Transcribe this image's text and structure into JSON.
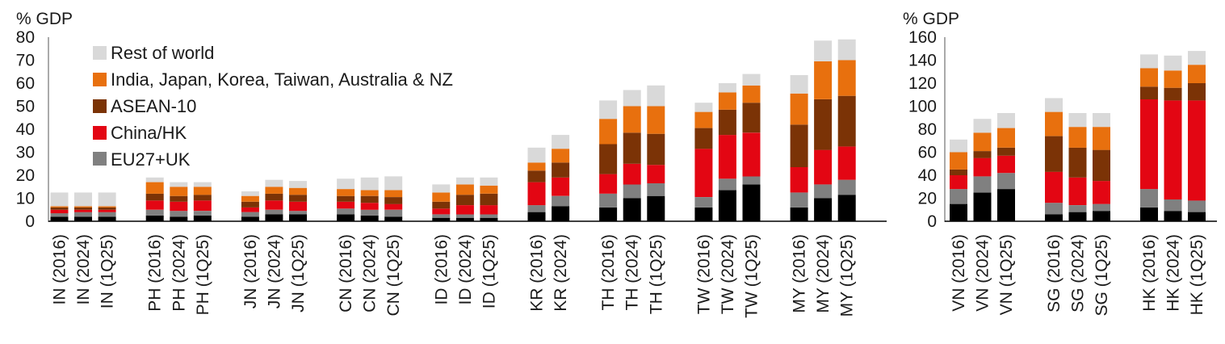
{
  "chart_data": [
    {
      "type": "bar",
      "stacked": true,
      "ylabel": "% GDP",
      "ylim": [
        0,
        80
      ],
      "yticks": [
        0,
        10,
        20,
        30,
        40,
        50,
        60,
        70,
        80
      ],
      "categories": [
        "IN (2016)",
        "IN (2024)",
        "IN (1Q25)",
        "",
        "PH (2016)",
        "PH (2024)",
        "PH (1Q25)",
        "",
        "JN (2016)",
        "JN (2024)",
        "JN (1Q25)",
        "",
        "CN (2016)",
        "CN (2024)",
        "CN (1Q25)",
        "",
        "ID (2016)",
        "ID (2024)",
        "ID (1Q25)",
        "",
        "KR (2016)",
        "KR (2024)",
        "",
        "TH (2016)",
        "TH (2024)",
        "TH (1Q25)",
        "",
        "TW (2016)",
        "TW (2024)",
        "TW (1Q25)",
        "",
        "MY (2016)",
        "MY (2024)",
        "MY (1Q25)"
      ],
      "series": [
        {
          "name": "",
          "color": "#000000",
          "values": [
            2,
            2,
            2,
            null,
            2.5,
            2,
            2.5,
            null,
            2,
            3,
            3,
            null,
            3,
            2.5,
            2,
            null,
            1.5,
            1.5,
            1.5,
            null,
            4,
            6.5,
            null,
            6,
            10,
            11,
            null,
            6,
            13.5,
            16,
            null,
            6,
            10,
            11.5
          ]
        },
        {
          "name": "EU27+UK",
          "color": "#808080",
          "values": [
            1.5,
            2,
            2,
            null,
            2.5,
            2.5,
            2,
            null,
            2,
            2,
            1.5,
            null,
            2.5,
            2.5,
            3,
            null,
            1.5,
            1.5,
            1.5,
            null,
            3,
            4.5,
            null,
            6,
            6,
            5.5,
            null,
            4.5,
            5,
            3.5,
            null,
            6.5,
            6,
            6.5
          ]
        },
        {
          "name": "China/HK",
          "color": "#e30613",
          "values": [
            1.5,
            1,
            1,
            null,
            4,
            4,
            4.5,
            null,
            2,
            4,
            4,
            null,
            3,
            3,
            2.5,
            null,
            2.5,
            4,
            4,
            null,
            10,
            8,
            null,
            8.5,
            9,
            8,
            null,
            21,
            19,
            19,
            null,
            11,
            15,
            14.5
          ]
        },
        {
          "name": "ASEAN-10",
          "color": "#7b3306",
          "values": [
            1,
            1,
            1,
            null,
            3,
            2.5,
            2.5,
            null,
            2.5,
            3,
            3,
            null,
            2.5,
            3,
            3,
            null,
            3,
            4.5,
            5,
            null,
            5,
            6.5,
            null,
            13,
            13.5,
            13.5,
            null,
            9,
            11,
            13,
            null,
            18.5,
            22,
            22
          ]
        },
        {
          "name": "India, Japan, Korea, Taiwan, Australia & NZ",
          "color": "#e8700e",
          "values": [
            0.5,
            0.5,
            0.5,
            null,
            5,
            4,
            3.5,
            null,
            2.5,
            3,
            3,
            null,
            3,
            2.5,
            3,
            null,
            4,
            4.5,
            3.5,
            null,
            3.5,
            6,
            null,
            11,
            11.5,
            12,
            null,
            7,
            7.5,
            7.5,
            null,
            13.5,
            16.5,
            15.5
          ]
        },
        {
          "name": "Rest of world",
          "color": "#d9d9d9",
          "values": [
            6,
            6,
            6,
            null,
            2,
            2,
            2,
            null,
            2,
            3,
            3,
            null,
            4.5,
            5.5,
            6,
            null,
            3.5,
            3,
            3.5,
            null,
            6.5,
            6,
            null,
            8,
            7,
            9,
            null,
            4,
            4,
            5,
            null,
            8,
            9,
            9
          ]
        }
      ]
    },
    {
      "type": "bar",
      "stacked": true,
      "ylabel": "% GDP",
      "ylim": [
        0,
        160
      ],
      "yticks": [
        0,
        20,
        40,
        60,
        80,
        100,
        120,
        140,
        160
      ],
      "categories": [
        "VN (2016)",
        "VN (2024)",
        "VN (1Q25)",
        "",
        "SG (2016)",
        "SG (2024)",
        "SG (1Q25)",
        "",
        "HK (2016)",
        "HK (2024)",
        "HK (1Q25)"
      ],
      "series": [
        {
          "name": "",
          "color": "#000000",
          "values": [
            15,
            25,
            28,
            null,
            6,
            8,
            9,
            null,
            12,
            9,
            8
          ]
        },
        {
          "name": "EU27+UK",
          "color": "#808080",
          "values": [
            13,
            14,
            14,
            null,
            10,
            6,
            6,
            null,
            16,
            10,
            10
          ]
        },
        {
          "name": "China/HK",
          "color": "#e30613",
          "values": [
            12,
            16,
            15,
            null,
            27,
            24,
            20,
            null,
            78,
            86,
            87
          ]
        },
        {
          "name": "ASEAN-10",
          "color": "#7b3306",
          "values": [
            5,
            6,
            7,
            null,
            31,
            26,
            27,
            null,
            11,
            11,
            15
          ]
        },
        {
          "name": "India, Japan, Korea, Taiwan, Australia & NZ",
          "color": "#e8700e",
          "values": [
            15,
            16,
            17,
            null,
            21,
            18,
            20,
            null,
            16,
            15,
            16
          ]
        },
        {
          "name": "Rest of world",
          "color": "#d9d9d9",
          "values": [
            11,
            12,
            13,
            null,
            12,
            12,
            12,
            null,
            12,
            13,
            12
          ]
        }
      ]
    }
  ],
  "legend": [
    {
      "label": "Rest of world",
      "color": "#d9d9d9"
    },
    {
      "label": "India, Japan, Korea, Taiwan, Australia & NZ",
      "color": "#e8700e"
    },
    {
      "label": "ASEAN-10",
      "color": "#7b3306"
    },
    {
      "label": "China/HK",
      "color": "#e30613"
    },
    {
      "label": "EU27+UK",
      "color": "#808080"
    }
  ]
}
